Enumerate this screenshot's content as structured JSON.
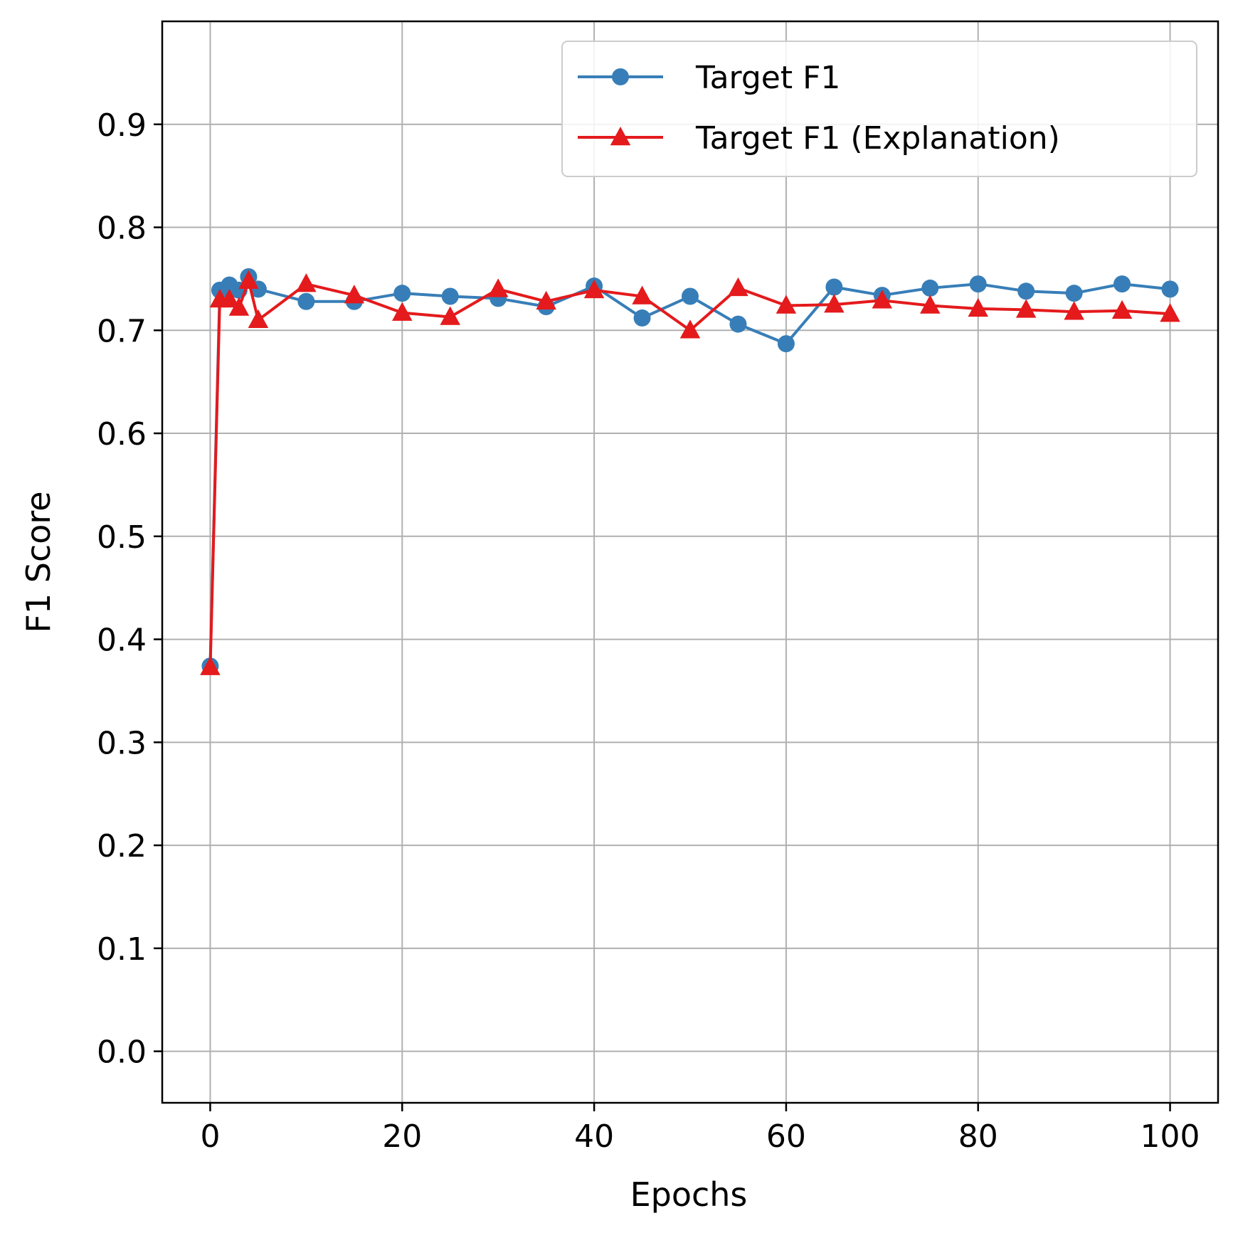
{
  "colors": {
    "target_f1": "#377eb8",
    "target_f1_explanation": "#e41a1c",
    "grid": "#b0b0b0",
    "axes": "#000000"
  },
  "chart_data": {
    "type": "line",
    "title": "",
    "xlabel": "Epochs",
    "ylabel": "F1 Score",
    "xlim": [
      -5,
      105
    ],
    "ylim": [
      -0.05,
      1.0
    ],
    "xticks": [
      0,
      20,
      40,
      60,
      80,
      100
    ],
    "xtick_labels": [
      "0",
      "20",
      "40",
      "60",
      "80",
      "100"
    ],
    "yticks": [
      0.0,
      0.1,
      0.2,
      0.3,
      0.4,
      0.5,
      0.6,
      0.7,
      0.8,
      0.9
    ],
    "ytick_labels": [
      "0.0",
      "0.1",
      "0.2",
      "0.3",
      "0.4",
      "0.5",
      "0.6",
      "0.7",
      "0.8",
      "0.9"
    ],
    "grid": true,
    "legend_position": "top-right",
    "x": [
      0,
      1,
      2,
      3,
      4,
      5,
      10,
      15,
      20,
      25,
      30,
      35,
      40,
      45,
      50,
      55,
      60,
      65,
      70,
      75,
      80,
      85,
      90,
      95,
      100
    ],
    "series": [
      {
        "name": "Target F1",
        "marker": "circle",
        "color": "#377eb8",
        "values": [
          0.374,
          0.739,
          0.744,
          0.739,
          0.752,
          0.74,
          0.728,
          0.728,
          0.736,
          0.733,
          0.731,
          0.723,
          0.743,
          0.712,
          0.733,
          0.706,
          0.687,
          0.742,
          0.734,
          0.741,
          0.745,
          0.738,
          0.736,
          0.745,
          0.74
        ]
      },
      {
        "name": "Target F1 (Explanation)",
        "marker": "triangle",
        "color": "#e41a1c",
        "values": [
          0.373,
          0.73,
          0.73,
          0.722,
          0.748,
          0.71,
          0.745,
          0.734,
          0.717,
          0.713,
          0.74,
          0.728,
          0.739,
          0.733,
          0.7,
          0.741,
          0.724,
          0.725,
          0.729,
          0.724,
          0.721,
          0.72,
          0.718,
          0.719,
          0.716
        ]
      }
    ]
  }
}
